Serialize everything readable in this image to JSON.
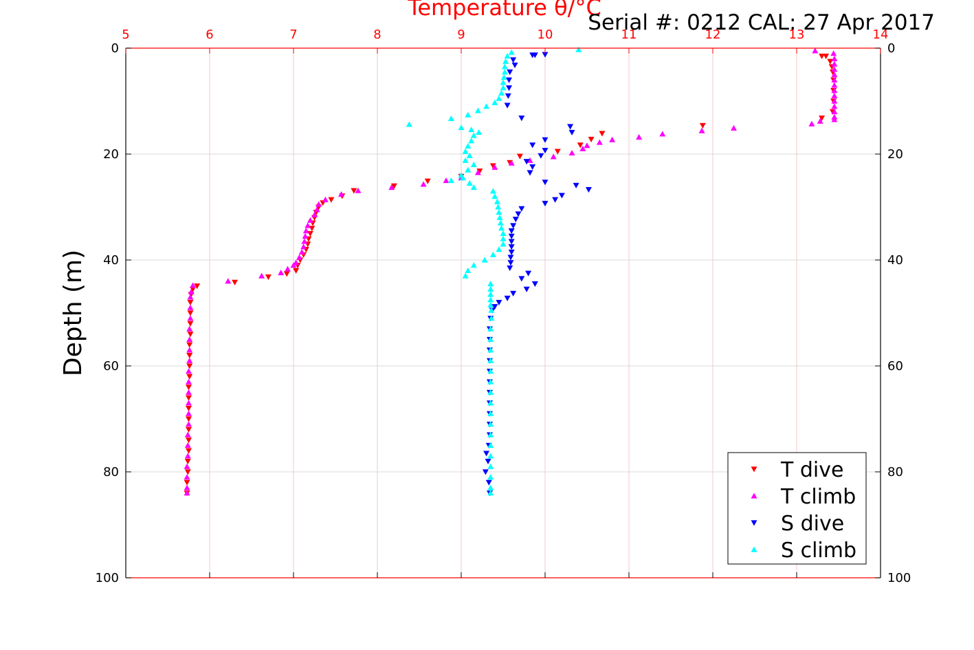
{
  "chart_data": {
    "type": "scatter",
    "xlabel": "Temperature θ/°C",
    "ylabel": "Depth (m)",
    "annotation": "Serial #: 0212  CAL: 27 Apr 2017",
    "xlim": [
      5,
      14
    ],
    "ylim": [
      0,
      100
    ],
    "y_reversed": true,
    "x_axis_position": "top",
    "x_ticks": [
      "5",
      "6",
      "7",
      "8",
      "9",
      "10",
      "11",
      "12",
      "13",
      "14"
    ],
    "y_ticks": [
      "0",
      "20",
      "40",
      "60",
      "80",
      "100"
    ],
    "grid": true,
    "legend_position": "bottom-right",
    "colors": {
      "axis_top": "#ff0000",
      "grid_x": "#f2c8c8",
      "grid_y": "#d8d8d8",
      "frame": "#000000"
    },
    "series": [
      {
        "name": "T dive",
        "marker": "triangle-down",
        "color": "#ff0000",
        "points": [
          [
            13.3,
            1.5
          ],
          [
            13.35,
            1.5
          ],
          [
            13.4,
            2.5
          ],
          [
            13.42,
            3.5
          ],
          [
            13.43,
            4.5
          ],
          [
            13.44,
            6
          ],
          [
            13.44,
            8
          ],
          [
            13.44,
            10
          ],
          [
            13.43,
            12
          ],
          [
            13.3,
            13.2
          ],
          [
            11.88,
            14.6
          ],
          [
            10.68,
            16.1
          ],
          [
            10.55,
            17.2
          ],
          [
            10.42,
            18.3
          ],
          [
            10.15,
            19.5
          ],
          [
            9.7,
            20.4
          ],
          [
            9.58,
            21.6
          ],
          [
            9.38,
            22.2
          ],
          [
            9.22,
            23.2
          ],
          [
            9.0,
            24.2
          ],
          [
            8.6,
            25.1
          ],
          [
            8.2,
            26.0
          ],
          [
            7.72,
            26.9
          ],
          [
            7.58,
            27.9
          ],
          [
            7.45,
            28.6
          ],
          [
            7.35,
            29.2
          ],
          [
            7.3,
            30
          ],
          [
            7.27,
            31
          ],
          [
            7.25,
            32
          ],
          [
            7.23,
            33
          ],
          [
            7.22,
            34
          ],
          [
            7.2,
            35
          ],
          [
            7.18,
            36
          ],
          [
            7.17,
            37
          ],
          [
            7.15,
            38
          ],
          [
            7.12,
            39
          ],
          [
            7.08,
            40
          ],
          [
            7.05,
            41
          ],
          [
            7.03,
            42
          ],
          [
            6.92,
            42.6
          ],
          [
            6.7,
            43.2
          ],
          [
            6.3,
            44.2
          ],
          [
            5.85,
            44.9
          ],
          [
            5.8,
            45.5
          ],
          [
            5.78,
            46.5
          ],
          [
            5.77,
            48
          ],
          [
            5.77,
            50
          ],
          [
            5.77,
            52
          ],
          [
            5.77,
            54
          ],
          [
            5.76,
            56
          ],
          [
            5.76,
            58
          ],
          [
            5.76,
            60
          ],
          [
            5.76,
            62
          ],
          [
            5.75,
            64
          ],
          [
            5.75,
            66
          ],
          [
            5.75,
            68
          ],
          [
            5.75,
            70
          ],
          [
            5.75,
            72
          ],
          [
            5.75,
            74
          ],
          [
            5.75,
            76
          ],
          [
            5.74,
            78
          ],
          [
            5.74,
            80
          ],
          [
            5.73,
            82
          ],
          [
            5.73,
            84
          ]
        ]
      },
      {
        "name": "T climb",
        "marker": "triangle-up",
        "color": "#ff00ff",
        "points": [
          [
            13.22,
            0.5
          ],
          [
            13.44,
            1
          ],
          [
            13.45,
            2
          ],
          [
            13.45,
            3
          ],
          [
            13.45,
            4
          ],
          [
            13.45,
            5
          ],
          [
            13.45,
            6
          ],
          [
            13.45,
            7
          ],
          [
            13.45,
            8
          ],
          [
            13.45,
            9
          ],
          [
            13.45,
            10
          ],
          [
            13.45,
            11
          ],
          [
            13.45,
            12
          ],
          [
            13.45,
            13
          ],
          [
            13.45,
            13.5
          ],
          [
            13.28,
            13.8
          ],
          [
            13.18,
            14.3
          ],
          [
            12.25,
            15.1
          ],
          [
            11.87,
            15.6
          ],
          [
            11.4,
            16.2
          ],
          [
            11.12,
            16.8
          ],
          [
            10.8,
            17.3
          ],
          [
            10.65,
            17.8
          ],
          [
            10.5,
            18.4
          ],
          [
            10.45,
            19
          ],
          [
            10.32,
            19.8
          ],
          [
            10.1,
            20.5
          ],
          [
            9.82,
            21.2
          ],
          [
            9.6,
            21.7
          ],
          [
            9.4,
            22.5
          ],
          [
            9.2,
            23.5
          ],
          [
            9.0,
            24.5
          ],
          [
            8.82,
            25.0
          ],
          [
            8.55,
            25.7
          ],
          [
            8.17,
            26.3
          ],
          [
            7.77,
            26.9
          ],
          [
            7.57,
            27.6
          ],
          [
            7.38,
            28.6
          ],
          [
            7.3,
            29.5
          ],
          [
            7.28,
            30.5
          ],
          [
            7.25,
            31.5
          ],
          [
            7.2,
            32.5
          ],
          [
            7.17,
            33.5
          ],
          [
            7.15,
            34.5
          ],
          [
            7.14,
            35.5
          ],
          [
            7.13,
            36.5
          ],
          [
            7.12,
            37.5
          ],
          [
            7.1,
            38.5
          ],
          [
            7.07,
            39.5
          ],
          [
            7.03,
            40.5
          ],
          [
            7.0,
            41
          ],
          [
            6.93,
            41.7
          ],
          [
            6.85,
            42.4
          ],
          [
            6.62,
            43
          ],
          [
            6.22,
            44
          ],
          [
            5.8,
            44.8
          ],
          [
            5.78,
            46
          ],
          [
            5.77,
            47
          ],
          [
            5.77,
            49
          ],
          [
            5.77,
            51
          ],
          [
            5.76,
            53
          ],
          [
            5.76,
            55
          ],
          [
            5.76,
            57
          ],
          [
            5.76,
            59
          ],
          [
            5.75,
            61
          ],
          [
            5.75,
            63
          ],
          [
            5.75,
            65
          ],
          [
            5.75,
            67
          ],
          [
            5.75,
            69
          ],
          [
            5.75,
            71
          ],
          [
            5.74,
            73
          ],
          [
            5.74,
            75
          ],
          [
            5.74,
            77
          ],
          [
            5.73,
            79
          ],
          [
            5.73,
            81
          ],
          [
            5.73,
            83
          ],
          [
            5.73,
            84
          ]
        ]
      },
      {
        "name": "S dive",
        "marker": "triangle-down",
        "color": "#0000ff",
        "points": [
          [
            9.85,
            1.3
          ],
          [
            9.88,
            1.3
          ],
          [
            10.0,
            1.2
          ],
          [
            9.62,
            2.2
          ],
          [
            9.64,
            3.2
          ],
          [
            9.58,
            4.5
          ],
          [
            9.57,
            6
          ],
          [
            9.57,
            7.5
          ],
          [
            9.56,
            9
          ],
          [
            9.55,
            10.8
          ],
          [
            9.72,
            13.2
          ],
          [
            10.3,
            14.8
          ],
          [
            10.32,
            15.9
          ],
          [
            10.0,
            17.3
          ],
          [
            9.85,
            18.3
          ],
          [
            10.0,
            19.3
          ],
          [
            9.95,
            20.3
          ],
          [
            9.78,
            21.4
          ],
          [
            9.85,
            22.4
          ],
          [
            9.82,
            23.5
          ],
          [
            10.0,
            25.3
          ],
          [
            10.37,
            25.9
          ],
          [
            10.52,
            26.7
          ],
          [
            10.2,
            27.8
          ],
          [
            10.12,
            28.6
          ],
          [
            10.0,
            29.3
          ],
          [
            9.72,
            30.3
          ],
          [
            9.68,
            31.3
          ],
          [
            9.65,
            32.3
          ],
          [
            9.62,
            33.5
          ],
          [
            9.6,
            34.5
          ],
          [
            9.6,
            35.5
          ],
          [
            9.6,
            36.5
          ],
          [
            9.6,
            37.5
          ],
          [
            9.6,
            38.5
          ],
          [
            9.59,
            39.5
          ],
          [
            9.59,
            40.5
          ],
          [
            9.58,
            41.5
          ],
          [
            9.8,
            42.5
          ],
          [
            9.72,
            43.5
          ],
          [
            9.88,
            44.5
          ],
          [
            9.78,
            45.5
          ],
          [
            9.62,
            46.3
          ],
          [
            9.55,
            47.2
          ],
          [
            9.45,
            48
          ],
          [
            9.4,
            48.8
          ],
          [
            9.37,
            49.5
          ],
          [
            9.35,
            51
          ],
          [
            9.34,
            53
          ],
          [
            9.34,
            55
          ],
          [
            9.34,
            57
          ],
          [
            9.34,
            59
          ],
          [
            9.34,
            61
          ],
          [
            9.34,
            63
          ],
          [
            9.34,
            65
          ],
          [
            9.34,
            67
          ],
          [
            9.34,
            69
          ],
          [
            9.34,
            71
          ],
          [
            9.34,
            73
          ],
          [
            9.33,
            75
          ],
          [
            9.3,
            76.5
          ],
          [
            9.32,
            78
          ],
          [
            9.29,
            80
          ],
          [
            9.33,
            82
          ],
          [
            9.34,
            84
          ]
        ]
      },
      {
        "name": "S climb",
        "marker": "triangle-up",
        "color": "#00ffff",
        "points": [
          [
            10.4,
            0.3
          ],
          [
            9.6,
            0.8
          ],
          [
            9.55,
            1.5
          ],
          [
            9.53,
            2.5
          ],
          [
            9.52,
            3.5
          ],
          [
            9.52,
            4.5
          ],
          [
            9.51,
            5.5
          ],
          [
            9.5,
            6.5
          ],
          [
            9.5,
            7.5
          ],
          [
            9.48,
            8.5
          ],
          [
            9.45,
            9.5
          ],
          [
            9.4,
            10.3
          ],
          [
            9.3,
            11
          ],
          [
            9.2,
            11.8
          ],
          [
            9.08,
            12.6
          ],
          [
            8.88,
            13.3
          ],
          [
            8.38,
            14.4
          ],
          [
            9.0,
            15
          ],
          [
            9.12,
            15.4
          ],
          [
            9.21,
            15.9
          ],
          [
            9.15,
            16.5
          ],
          [
            9.12,
            17.5
          ],
          [
            9.08,
            18.5
          ],
          [
            9.05,
            19.5
          ],
          [
            9.1,
            20.3
          ],
          [
            9.05,
            21.2
          ],
          [
            9.15,
            22
          ],
          [
            9.08,
            23
          ],
          [
            9.0,
            24
          ],
          [
            9.02,
            24.5
          ],
          [
            8.88,
            25
          ],
          [
            9.1,
            25.5
          ],
          [
            9.15,
            26.3
          ],
          [
            9.38,
            27
          ],
          [
            9.4,
            28
          ],
          [
            9.43,
            29
          ],
          [
            9.44,
            30
          ],
          [
            9.45,
            31
          ],
          [
            9.46,
            32
          ],
          [
            9.47,
            33
          ],
          [
            9.48,
            34
          ],
          [
            9.5,
            35
          ],
          [
            9.5,
            36
          ],
          [
            9.5,
            37
          ],
          [
            9.45,
            38
          ],
          [
            9.38,
            39
          ],
          [
            9.28,
            40
          ],
          [
            9.15,
            41
          ],
          [
            9.08,
            42
          ],
          [
            9.05,
            43
          ],
          [
            9.35,
            44.5
          ],
          [
            9.35,
            45.5
          ],
          [
            9.35,
            46.5
          ],
          [
            9.35,
            47.5
          ],
          [
            9.35,
            48.5
          ],
          [
            9.36,
            49.5
          ],
          [
            9.36,
            51
          ],
          [
            9.35,
            53
          ],
          [
            9.35,
            55
          ],
          [
            9.35,
            57
          ],
          [
            9.35,
            59
          ],
          [
            9.35,
            61
          ],
          [
            9.35,
            63
          ],
          [
            9.35,
            65
          ],
          [
            9.35,
            67
          ],
          [
            9.35,
            69
          ],
          [
            9.35,
            71
          ],
          [
            9.35,
            73
          ],
          [
            9.35,
            75
          ],
          [
            9.35,
            77
          ],
          [
            9.35,
            79
          ],
          [
            9.35,
            81
          ],
          [
            9.35,
            83
          ],
          [
            9.35,
            84
          ]
        ]
      }
    ]
  }
}
